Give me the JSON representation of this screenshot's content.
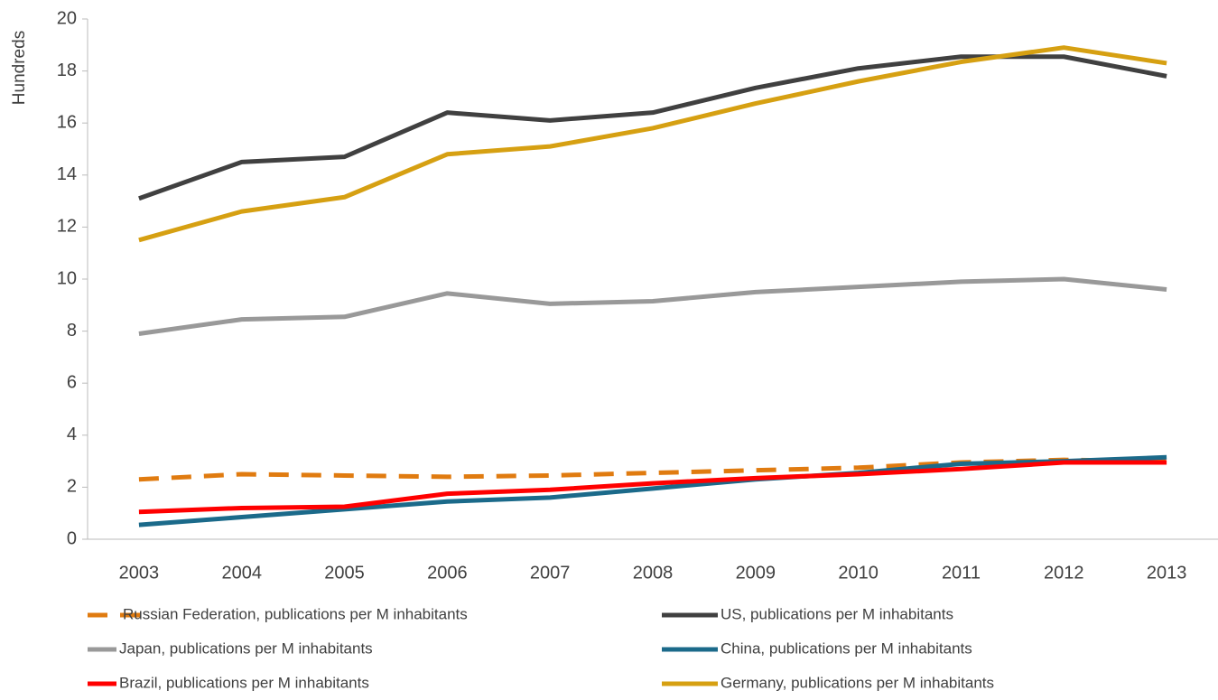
{
  "chart_data": {
    "type": "line",
    "y_label": "Hundreds",
    "categories": [
      "2003",
      "2004",
      "2005",
      "2006",
      "2007",
      "2008",
      "2009",
      "2010",
      "2011",
      "2012",
      "2013"
    ],
    "series": [
      {
        "name": "Russian Federation, publications per M inhabitants",
        "color": "#e07b10",
        "dashed": true,
        "values": [
          2.3,
          2.5,
          2.45,
          2.4,
          2.45,
          2.55,
          2.65,
          2.75,
          2.95,
          3.05,
          3.0
        ]
      },
      {
        "name": "US, publications per M inhabitants",
        "color": "#404040",
        "values": [
          13.1,
          14.5,
          14.7,
          16.4,
          16.1,
          16.4,
          17.35,
          18.1,
          18.55,
          18.55,
          17.8
        ]
      },
      {
        "name": "Japan, publications per M inhabitants",
        "color": "#999999",
        "values": [
          7.9,
          8.45,
          8.55,
          9.45,
          9.05,
          9.15,
          9.5,
          9.7,
          9.9,
          10.0,
          9.6
        ]
      },
      {
        "name": "China, publications per M inhabitants",
        "color": "#1b6a8a",
        "values": [
          0.55,
          0.85,
          1.15,
          1.45,
          1.6,
          1.95,
          2.3,
          2.55,
          2.9,
          3.0,
          3.15
        ]
      },
      {
        "name": "Brazil, publications per M inhabitants",
        "color": "#ff0000",
        "values": [
          1.05,
          1.2,
          1.25,
          1.75,
          1.9,
          2.15,
          2.35,
          2.5,
          2.7,
          2.95,
          2.95
        ]
      },
      {
        "name": "Germany, publications per M inhabitants",
        "color": "#d6a012",
        "values": [
          11.5,
          12.6,
          13.15,
          14.8,
          15.1,
          15.8,
          16.75,
          17.6,
          18.35,
          18.9,
          18.3
        ]
      }
    ],
    "ylim": [
      0,
      20
    ],
    "yticks": [
      0,
      2,
      4,
      6,
      8,
      10,
      12,
      14,
      16,
      18,
      20
    ],
    "grid": false,
    "legend": "bottom"
  }
}
